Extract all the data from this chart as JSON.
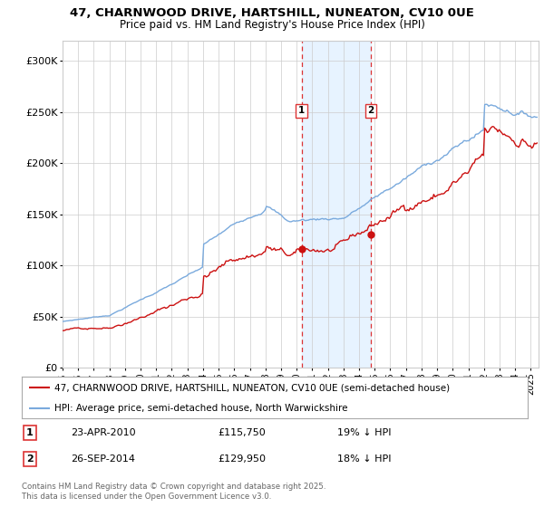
{
  "title_line1": "47, CHARNWOOD DRIVE, HARTSHILL, NUNEATON, CV10 0UE",
  "title_line2": "Price paid vs. HM Land Registry's House Price Index (HPI)",
  "xlim_start": 1995.0,
  "xlim_end": 2025.5,
  "ylim_min": 0,
  "ylim_max": 320000,
  "yticks": [
    0,
    50000,
    100000,
    150000,
    200000,
    250000,
    300000
  ],
  "ytick_labels": [
    "£0",
    "£50K",
    "£100K",
    "£150K",
    "£200K",
    "£250K",
    "£300K"
  ],
  "legend_line1": "47, CHARNWOOD DRIVE, HARTSHILL, NUNEATON, CV10 0UE (semi-detached house)",
  "legend_line2": "HPI: Average price, semi-detached house, North Warwickshire",
  "sale1_date": "23-APR-2010",
  "sale1_price": "£115,750",
  "sale1_pct": "19% ↓ HPI",
  "sale2_date": "26-SEP-2014",
  "sale2_price": "£129,950",
  "sale2_pct": "18% ↓ HPI",
  "footnote": "Contains HM Land Registry data © Crown copyright and database right 2025.\nThis data is licensed under the Open Government Licence v3.0.",
  "hpi_color": "#7aaadd",
  "price_color": "#cc1111",
  "marker1_year": 2010.31,
  "marker2_year": 2014.74,
  "sale1_val": 115750,
  "sale2_val": 129950,
  "background_color": "#ffffff",
  "grid_color": "#cccccc",
  "span_color": "#ddeeff"
}
